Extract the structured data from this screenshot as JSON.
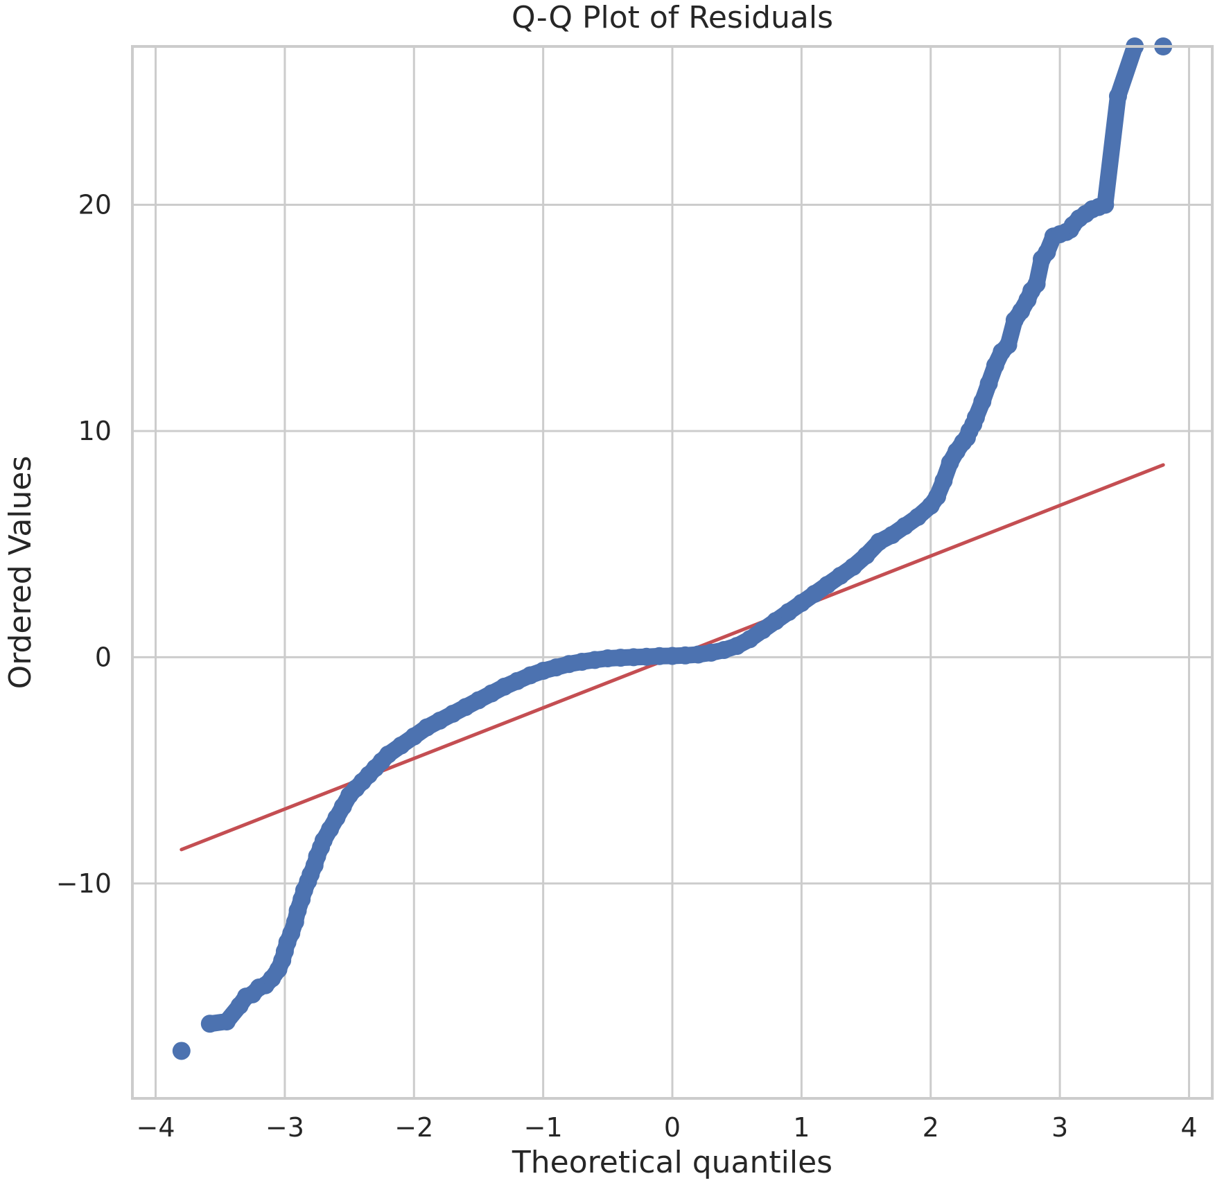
{
  "chart_data": {
    "type": "scatter",
    "title": "Q-Q Plot of Residuals",
    "xlabel": "Theoretical quantiles",
    "ylabel": "Ordered Values",
    "xlim": [
      -4.18,
      4.18
    ],
    "ylim": [
      -19.5,
      27.0
    ],
    "xticks": [
      -4,
      -3,
      -2,
      -1,
      0,
      1,
      2,
      3,
      4
    ],
    "xtick_labels": [
      "−4",
      "−3",
      "−2",
      "−1",
      "0",
      "1",
      "2",
      "3",
      "4"
    ],
    "yticks": [
      -10,
      0,
      10,
      20
    ],
    "ytick_labels": [
      "−10",
      "0",
      "10",
      "20"
    ],
    "grid": true,
    "colors": {
      "points": "#4c72b0",
      "fit_line": "#c44e52",
      "grid": "#cccccc"
    },
    "fit_line": {
      "x": [
        -3.8,
        3.8
      ],
      "y": [
        -8.5,
        8.5
      ]
    },
    "series": [
      {
        "points": {
          "x": [
            -3.8,
            -3.58,
            -3.45,
            -3.35,
            -3.3,
            -3.25,
            -3.2,
            -3.15,
            -3.1,
            -3.05,
            -3.02,
            -3.0,
            -2.98,
            -2.95,
            -2.92,
            -2.9,
            -2.87,
            -2.85,
            -2.82,
            -2.8,
            -2.77,
            -2.75,
            -2.72,
            -2.7,
            -2.65,
            -2.6,
            -2.55,
            -2.5,
            -2.45,
            -2.4,
            -2.35,
            -2.3,
            -2.25,
            -2.2,
            -2.1,
            -2.0,
            -1.9,
            -1.8,
            -1.7,
            -1.6,
            -1.5,
            -1.4,
            -1.3,
            -1.2,
            -1.1,
            -1.0,
            -0.9,
            -0.8,
            -0.7,
            -0.6,
            -0.5,
            -0.4,
            -0.3,
            -0.2,
            -0.1,
            0.0,
            0.1,
            0.2,
            0.3,
            0.4,
            0.5,
            0.6,
            0.7,
            0.8,
            0.9,
            1.0,
            1.1,
            1.2,
            1.3,
            1.4,
            1.5,
            1.6,
            1.7,
            1.8,
            1.9,
            2.0,
            2.05,
            2.1,
            2.15,
            2.2,
            2.25,
            2.28,
            2.3,
            2.33,
            2.35,
            2.4,
            2.45,
            2.5,
            2.55,
            2.6,
            2.65,
            2.7,
            2.75,
            2.78,
            2.82,
            2.86,
            2.9,
            2.95,
            3.0,
            3.05,
            3.08,
            3.1,
            3.15,
            3.2,
            3.25,
            3.3,
            3.35,
            3.45,
            3.58,
            3.8
          ],
          "y": [
            -17.4,
            -16.2,
            -16.1,
            -15.4,
            -15.0,
            -14.9,
            -14.6,
            -14.5,
            -14.2,
            -13.8,
            -13.4,
            -13.0,
            -12.6,
            -12.2,
            -11.7,
            -11.2,
            -10.7,
            -10.3,
            -9.9,
            -9.6,
            -9.2,
            -8.8,
            -8.4,
            -8.1,
            -7.6,
            -7.1,
            -6.6,
            -6.1,
            -5.8,
            -5.5,
            -5.2,
            -4.9,
            -4.6,
            -4.3,
            -3.9,
            -3.5,
            -3.1,
            -2.8,
            -2.5,
            -2.2,
            -1.9,
            -1.6,
            -1.3,
            -1.05,
            -0.8,
            -0.6,
            -0.45,
            -0.3,
            -0.2,
            -0.12,
            -0.05,
            -0.02,
            0.0,
            0.02,
            0.05,
            0.06,
            0.08,
            0.12,
            0.2,
            0.32,
            0.5,
            0.8,
            1.2,
            1.6,
            2.0,
            2.4,
            2.8,
            3.2,
            3.6,
            4.0,
            4.5,
            5.1,
            5.4,
            5.8,
            6.2,
            6.7,
            7.1,
            7.8,
            8.6,
            9.1,
            9.5,
            9.7,
            10.0,
            10.3,
            10.6,
            11.3,
            12.1,
            12.9,
            13.5,
            13.8,
            14.9,
            15.3,
            15.8,
            16.2,
            16.5,
            17.6,
            17.9,
            18.6,
            18.7,
            18.8,
            18.9,
            19.1,
            19.4,
            19.6,
            19.8,
            19.9,
            20.0,
            24.8,
            27.0,
            27.0
          ]
        }
      }
    ]
  }
}
